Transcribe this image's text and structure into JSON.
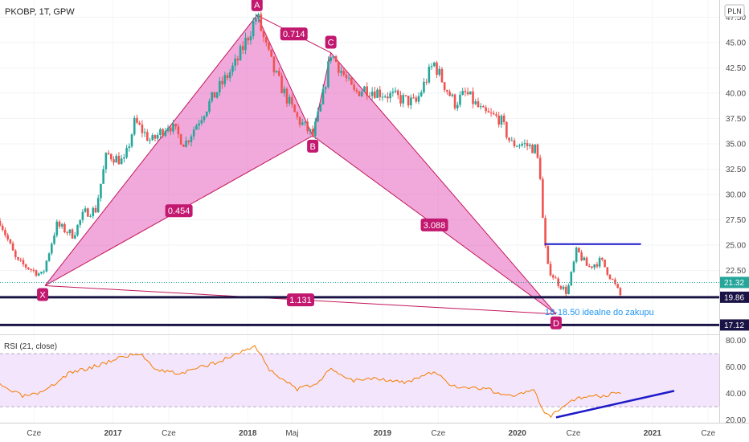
{
  "header": {
    "symbol_line": "PKOBP, 1T, GPW",
    "currency_badge": "PLN"
  },
  "colors": {
    "up": "#26a69a",
    "down": "#ef5350",
    "pattern_fill": "#e040b0",
    "pattern_stroke": "#c2185b",
    "label_bg": "#c2186f",
    "support_line": "#1a1446",
    "blue_line": "#1d19c9",
    "rsi_line": "#f57c00",
    "rsi_band": "#f3e5fb",
    "annotation_text": "#2196f3"
  },
  "chart_data": [
    {
      "type": "candlestick",
      "title": "PKOBP, 1T, GPW",
      "y_axis_ticks": [
        "47.50",
        "45.00",
        "42.50",
        "40.00",
        "37.50",
        "35.00",
        "32.50",
        "30.00",
        "27.50",
        "25.00",
        "22.50"
      ],
      "ylim": [
        16.2,
        49.2
      ],
      "x_axis_ticks": [
        "Cze",
        "2017",
        "Cze",
        "2018",
        "Maj",
        "2019",
        "Cze",
        "2020",
        "Cze",
        "2021",
        "Cze"
      ],
      "xlim": [
        "2016-03",
        "2021-07"
      ],
      "price_tags": [
        {
          "value": "21.32",
          "kind": "last"
        },
        {
          "value": "19.86",
          "kind": "level"
        },
        {
          "value": "17.12",
          "kind": "level"
        }
      ],
      "close_path": [
        [
          "2016-03-01",
          27.4
        ],
        [
          "2016-04-15",
          23.4
        ],
        [
          "2016-05-15",
          22.8
        ],
        [
          "2016-06-24",
          22.0
        ],
        [
          "2016-08-01",
          27.0
        ],
        [
          "2016-09-15",
          26.0
        ],
        [
          "2016-10-15",
          28.2
        ],
        [
          "2016-11-15",
          28.5
        ],
        [
          "2016-12-15",
          34.0
        ],
        [
          "2017-02-01",
          33.2
        ],
        [
          "2017-03-01",
          37.2
        ],
        [
          "2017-04-15",
          35.2
        ],
        [
          "2017-06-01",
          37.0
        ],
        [
          "2017-07-15",
          35.0
        ],
        [
          "2017-09-01",
          38.0
        ],
        [
          "2017-10-15",
          40.5
        ],
        [
          "2017-12-01",
          43.0
        ],
        [
          "2018-01-26",
          47.7
        ],
        [
          "2018-02-20",
          44.5
        ],
        [
          "2018-03-15",
          42.0
        ],
        [
          "2018-04-10",
          40.0
        ],
        [
          "2018-05-15",
          37.5
        ],
        [
          "2018-06-26",
          35.8
        ],
        [
          "2018-07-20",
          39.0
        ],
        [
          "2018-08-14",
          44.0
        ],
        [
          "2018-09-15",
          42.0
        ],
        [
          "2018-10-15",
          40.0
        ],
        [
          "2018-11-15",
          40.5
        ],
        [
          "2019-01-01",
          40.0
        ],
        [
          "2019-02-15",
          39.5
        ],
        [
          "2019-04-01",
          39.0
        ],
        [
          "2019-05-01",
          41.5
        ],
        [
          "2019-05-20",
          43.0
        ],
        [
          "2019-06-15",
          41.0
        ],
        [
          "2019-07-15",
          39.0
        ],
        [
          "2019-08-15",
          40.0
        ],
        [
          "2019-10-01",
          38.0
        ],
        [
          "2019-11-15",
          37.5
        ],
        [
          "2019-12-15",
          35.0
        ],
        [
          "2020-01-15",
          35.0
        ],
        [
          "2020-02-20",
          34.5
        ],
        [
          "2020-03-05",
          31.5
        ],
        [
          "2020-03-12",
          26.0
        ],
        [
          "2020-03-24",
          22.8
        ],
        [
          "2020-04-15",
          21.5
        ],
        [
          "2020-05-15",
          20.3
        ],
        [
          "2020-06-10",
          24.5
        ],
        [
          "2020-07-10",
          22.8
        ],
        [
          "2020-08-15",
          23.5
        ],
        [
          "2020-09-15",
          21.5
        ],
        [
          "2020-10-08",
          19.9
        ]
      ],
      "pattern": {
        "points": [
          {
            "name": "X",
            "date": "2016-07-01",
            "price": 21.0
          },
          {
            "name": "A",
            "date": "2018-01-26",
            "price": 47.7
          },
          {
            "name": "B",
            "date": "2018-06-26",
            "price": 35.8
          },
          {
            "name": "C",
            "date": "2018-08-14",
            "price": 44.0
          },
          {
            "name": "D",
            "date": "2020-04-15",
            "price": 18.2
          }
        ],
        "ratios": [
          "0.454",
          "0.714",
          "3.088",
          "1.131"
        ]
      },
      "horizontal_lines": [
        {
          "price": 25.1,
          "from": "2020-03-15",
          "to": "2020-12-01"
        },
        {
          "price": 19.86,
          "from": "2016-03-01",
          "to": "2021-07-01"
        },
        {
          "price": 17.12,
          "from": "2016-03-01",
          "to": "2021-07-01"
        }
      ],
      "annotation": "18-18.50 idealne do zakupu"
    },
    {
      "type": "line",
      "title": "RSI (21, close)",
      "y_axis_ticks": [
        "80.00",
        "60.00",
        "40.00",
        "20.00"
      ],
      "ylim": [
        18,
        84
      ],
      "band": [
        30,
        70
      ],
      "series": [
        {
          "name": "RSI (21, close)",
          "points": [
            [
              "2016-03-01",
              46
            ],
            [
              "2016-05-01",
              38
            ],
            [
              "2016-06-24",
              40
            ],
            [
              "2016-09-01",
              55
            ],
            [
              "2016-12-01",
              62
            ],
            [
              "2017-01-15",
              67
            ],
            [
              "2017-03-15",
              70
            ],
            [
              "2017-05-01",
              58
            ],
            [
              "2017-07-01",
              55
            ],
            [
              "2017-09-01",
              60
            ],
            [
              "2017-11-01",
              66
            ],
            [
              "2018-01-20",
              76
            ],
            [
              "2018-03-01",
              58
            ],
            [
              "2018-05-15",
              43
            ],
            [
              "2018-07-01",
              47
            ],
            [
              "2018-08-15",
              58
            ],
            [
              "2018-10-15",
              50
            ],
            [
              "2018-12-15",
              52
            ],
            [
              "2019-03-01",
              48
            ],
            [
              "2019-05-20",
              56
            ],
            [
              "2019-07-15",
              45
            ],
            [
              "2019-10-01",
              44
            ],
            [
              "2019-12-15",
              38
            ],
            [
              "2020-02-15",
              42
            ],
            [
              "2020-03-15",
              25
            ],
            [
              "2020-04-01",
              22
            ],
            [
              "2020-05-01",
              30
            ],
            [
              "2020-06-10",
              37
            ],
            [
              "2020-08-01",
              38
            ],
            [
              "2020-10-08",
              40
            ]
          ]
        }
      ],
      "trendline": {
        "from": [
          "2020-04-15",
          22
        ],
        "to": [
          "2021-03-01",
          42
        ]
      }
    }
  ]
}
